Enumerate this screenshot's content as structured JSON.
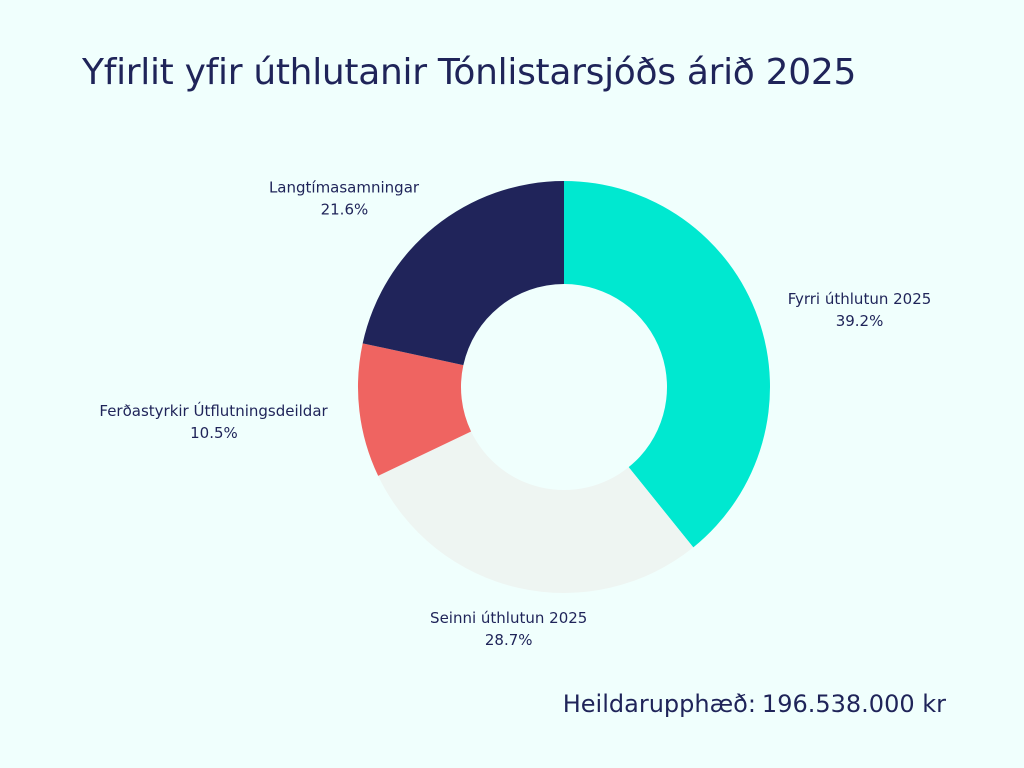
{
  "colors": {
    "background": "#f0fffd",
    "text": "#1f2459"
  },
  "chart_data": {
    "type": "pie",
    "variant": "donut",
    "title": "Yfirlit yfir úthlutanir Tónlistarsjóðs árið 2025",
    "series": [
      {
        "name": "Fyrri úthlutun 2025",
        "value": 39.2,
        "label": "39.2%",
        "color": "#00e8d0"
      },
      {
        "name": "Seinni úthlutun 2025",
        "value": 28.7,
        "label": "28.7%",
        "color": "#eef5f2"
      },
      {
        "name": "Ferðastyrkir Útflutningsdeildar",
        "value": 10.5,
        "label": "10.5%",
        "color": "#ef6461"
      },
      {
        "name": "Langtímasamningar",
        "value": 21.6,
        "label": "21.6%",
        "color": "#20245a"
      }
    ],
    "start": "top",
    "direction": "clockwise"
  },
  "total": {
    "label": "Heildarupphæð:",
    "value": "196.538.000 kr"
  }
}
